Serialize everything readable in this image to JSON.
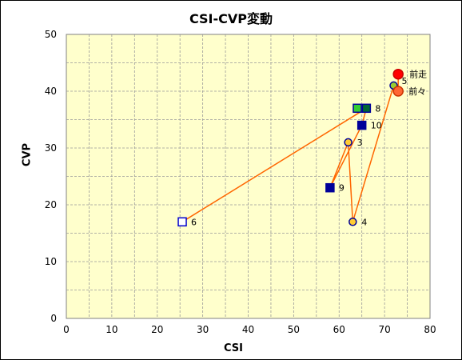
{
  "chart_data": {
    "type": "scatter",
    "title": "CSI-CVP変動",
    "xlabel": "CSI",
    "ylabel": "CVP",
    "xlim": [
      0,
      80
    ],
    "ylim": [
      0,
      50
    ],
    "xticks": [
      "0",
      "10",
      "20",
      "30",
      "40",
      "50",
      "60",
      "70",
      "80"
    ],
    "yticks": [
      "0",
      "10",
      "20",
      "30",
      "40",
      "50"
    ],
    "grid": true,
    "colors": {
      "plot_bg": "#ffffcc",
      "line": "#ff6600",
      "navy": "#000099",
      "green": "#33cc33",
      "orange": "#ff9933",
      "yellow": "#ffcc33",
      "red": "#ff0000",
      "white": "#ffffff"
    },
    "path": [
      {
        "label": "6",
        "x": 25.5,
        "y": 17,
        "marker": "square",
        "fill": "#ffffff",
        "stroke": "#0000cc"
      },
      {
        "label": "8",
        "x": 66,
        "y": 37,
        "marker": "square",
        "fill": "#006633",
        "stroke": "#000099"
      },
      {
        "label": "10",
        "x": 65,
        "y": 34,
        "marker": "square",
        "fill": "#000099",
        "stroke": "#000099"
      },
      {
        "label": "9",
        "x": 58,
        "y": 23,
        "marker": "square",
        "fill": "#000099",
        "stroke": "#000099"
      },
      {
        "label": "3",
        "x": 62,
        "y": 31,
        "marker": "circle",
        "fill": "#ffcc33",
        "stroke": "#000099"
      },
      {
        "label": "4",
        "x": 63,
        "y": 17,
        "marker": "circle",
        "fill": "#ffcc33",
        "stroke": "#000099"
      },
      {
        "label": "5",
        "x": 72,
        "y": 41,
        "marker": "circle",
        "fill": "#99cc33",
        "stroke": "#000099"
      },
      {
        "label": "前々",
        "x": 73,
        "y": 40,
        "marker": "circle",
        "fill": "#ff6633",
        "stroke": "#cc3300"
      },
      {
        "label": "前走",
        "x": 73,
        "y": 43,
        "marker": "circle",
        "fill": "#ff0000",
        "stroke": "#cc0000"
      }
    ],
    "extra_points": [
      {
        "label": "",
        "x": 64,
        "y": 37,
        "marker": "square",
        "fill": "#33cc33",
        "stroke": "#000099"
      }
    ]
  }
}
